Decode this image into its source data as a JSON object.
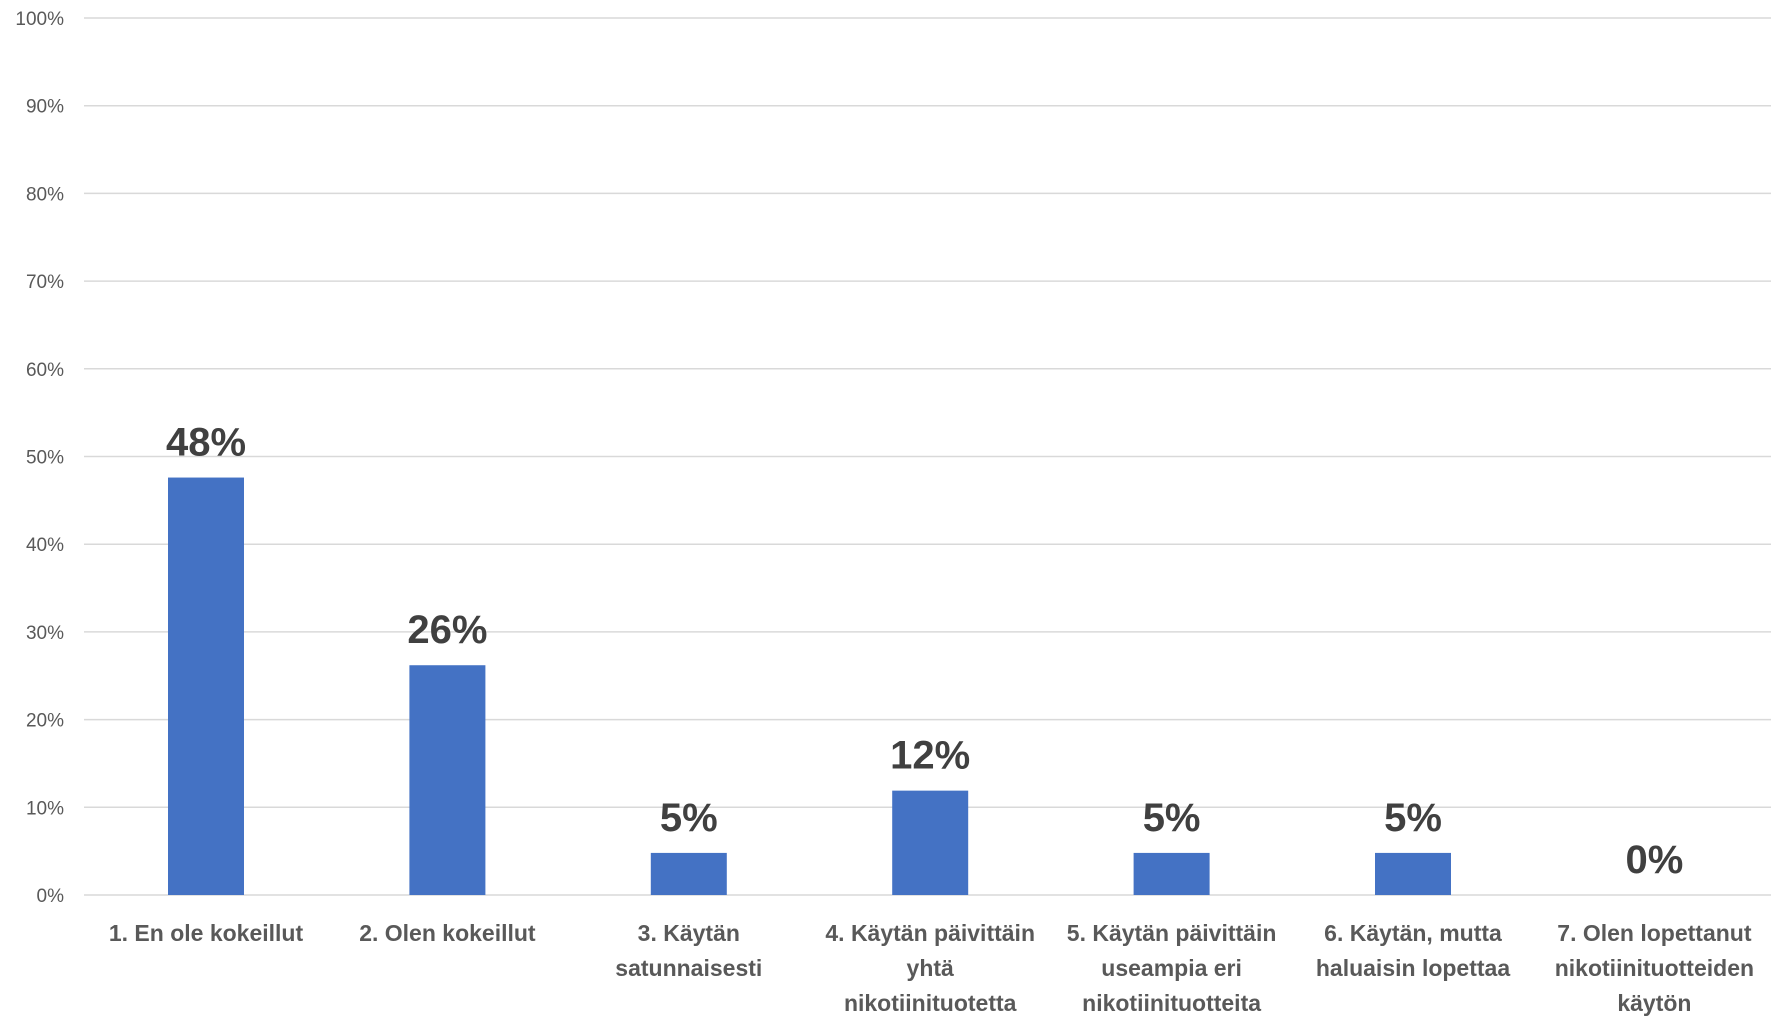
{
  "chart_data": {
    "type": "bar",
    "categories": [
      [
        "1. En ole kokeillut"
      ],
      [
        "2. Olen kokeillut"
      ],
      [
        "3. Käytän",
        "satunnaisesti"
      ],
      [
        "4. Käytän päivittäin",
        "yhtä",
        "nikotiinituotetta"
      ],
      [
        "5. Käytän päivittäin",
        "useampia eri",
        "nikotiinituotteita"
      ],
      [
        "6. Käytän, mutta",
        "haluaisin lopettaa"
      ],
      [
        "7. Olen lopettanut",
        "nikotiinituotteiden",
        "käytön"
      ]
    ],
    "values": [
      47.6,
      26.2,
      4.8,
      11.9,
      4.8,
      4.8,
      0
    ],
    "data_labels": [
      "48%",
      "26%",
      "5%",
      "12%",
      "5%",
      "5%",
      "0%"
    ],
    "y_ticks": [
      "0%",
      "10%",
      "20%",
      "30%",
      "40%",
      "50%",
      "60%",
      "70%",
      "80%",
      "90%",
      "100%"
    ],
    "ylim": [
      0,
      100
    ],
    "grid": true,
    "bar_color": "#4472C4",
    "grid_color": "#D9D9D9"
  }
}
